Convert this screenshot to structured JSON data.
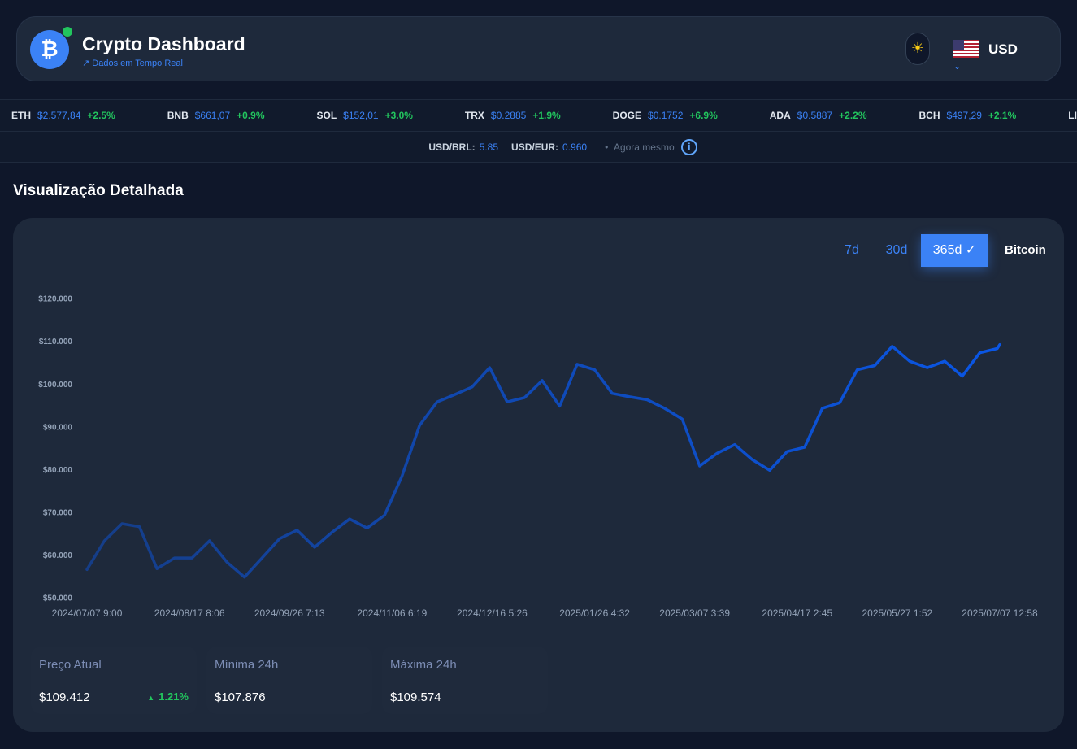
{
  "header": {
    "title": "Crypto Dashboard",
    "subtitle": "Dados em Tempo Real",
    "currency": "USD"
  },
  "ticker": [
    {
      "symbol": "ETH",
      "price": "$2.577,84",
      "change": "+2.5%"
    },
    {
      "symbol": "BNB",
      "price": "$661,07",
      "change": "+0.9%"
    },
    {
      "symbol": "SOL",
      "price": "$152,01",
      "change": "+3.0%"
    },
    {
      "symbol": "TRX",
      "price": "$0.2885",
      "change": "+1.9%"
    },
    {
      "symbol": "DOGE",
      "price": "$0.1752",
      "change": "+6.9%"
    },
    {
      "symbol": "ADA",
      "price": "$0.5887",
      "change": "+2.2%"
    },
    {
      "symbol": "BCH",
      "price": "$497,29",
      "change": "+2.1%"
    },
    {
      "symbol": "LINK"
    }
  ],
  "rates": {
    "brl_label": "USD/BRL:",
    "brl": "5.85",
    "eur_label": "USD/EUR:",
    "eur": "0.960",
    "updated": "Agora mesmo"
  },
  "section_title": "Visualização Detalhada",
  "range_buttons": [
    "7d",
    "30d",
    "365d ✓"
  ],
  "chart_data": {
    "type": "line",
    "x": [
      "2024/07/07",
      "2024/07/14",
      "2024/07/21",
      "2024/07/28",
      "2024/08/04",
      "2024/08/11",
      "2024/08/18",
      "2024/08/25",
      "2024/09/01",
      "2024/09/08",
      "2024/09/15",
      "2024/09/22",
      "2024/09/29",
      "2024/10/06",
      "2024/10/13",
      "2024/10/20",
      "2024/10/27",
      "2024/11/03",
      "2024/11/10",
      "2024/11/17",
      "2024/11/24",
      "2024/12/01",
      "2024/12/08",
      "2024/12/15",
      "2024/12/22",
      "2024/12/29",
      "2025/01/05",
      "2025/01/12",
      "2025/01/19",
      "2025/01/26",
      "2025/02/02",
      "2025/02/09",
      "2025/02/16",
      "2025/02/23",
      "2025/03/02",
      "2025/03/09",
      "2025/03/16",
      "2025/03/23",
      "2025/03/30",
      "2025/04/06",
      "2025/04/13",
      "2025/04/20",
      "2025/04/27",
      "2025/05/04",
      "2025/05/11",
      "2025/05/18",
      "2025/05/25",
      "2025/06/01",
      "2025/06/08",
      "2025/06/15",
      "2025/06/22",
      "2025/06/29",
      "2025/07/06",
      "2025/07/07"
    ],
    "series": [
      {
        "name": "Bitcoin",
        "color": "#0a56e6",
        "values": [
          56800,
          63500,
          67500,
          66800,
          57000,
          59500,
          59500,
          63500,
          58500,
          55000,
          59500,
          64000,
          66000,
          62000,
          65500,
          68600,
          66500,
          69500,
          78700,
          90500,
          96000,
          97700,
          99500,
          104000,
          96000,
          97000,
          101000,
          95000,
          104800,
          103500,
          98000,
          97200,
          96500,
          94500,
          92000,
          81000,
          84000,
          86000,
          82500,
          80000,
          84400,
          85400,
          94500,
          95800,
          103500,
          104500,
          109000,
          105500,
          104000,
          105500,
          102000,
          107500,
          108500,
          109412
        ]
      }
    ],
    "xlim": [
      "2024/07/07",
      "2025/07/07"
    ],
    "xticks": [
      {
        "value": "2024/07/07",
        "label": "2024/07/07 9:00"
      },
      {
        "value": "2024/08/17",
        "label": "2024/08/17 8:06"
      },
      {
        "value": "2024/09/26",
        "label": "2024/09/26 7:13"
      },
      {
        "value": "2024/11/06",
        "label": "2024/11/06 6:19"
      },
      {
        "value": "2024/12/16",
        "label": "2024/12/16 5:26"
      },
      {
        "value": "2025/01/26",
        "label": "2025/01/26 4:32"
      },
      {
        "value": "2025/03/07",
        "label": "2025/03/07 3:39"
      },
      {
        "value": "2025/04/17",
        "label": "2025/04/17 2:45"
      },
      {
        "value": "2025/05/27",
        "label": "2025/05/27 1:52"
      },
      {
        "value": "2025/07/07",
        "label": "2025/07/07 12:58"
      }
    ],
    "ylim": [
      50000,
      120000
    ],
    "yticks": [
      {
        "value": 50000,
        "label": "$50.000"
      },
      {
        "value": 60000,
        "label": "$60.000"
      },
      {
        "value": 70000,
        "label": "$70.000"
      },
      {
        "value": 80000,
        "label": "$80.000"
      },
      {
        "value": 90000,
        "label": "$90.000"
      },
      {
        "value": 100000,
        "label": "$100.000"
      },
      {
        "value": 110000,
        "label": "$110.000"
      },
      {
        "value": 120000,
        "label": "$120.000"
      }
    ],
    "grid": false
  },
  "stats": [
    {
      "label": "Preço Atual",
      "value": "$109.412",
      "change": "1.21%"
    },
    {
      "label": "Mínima 24h",
      "value": "$107.876"
    },
    {
      "label": "Máxima 24h",
      "value": "$109.574"
    }
  ]
}
